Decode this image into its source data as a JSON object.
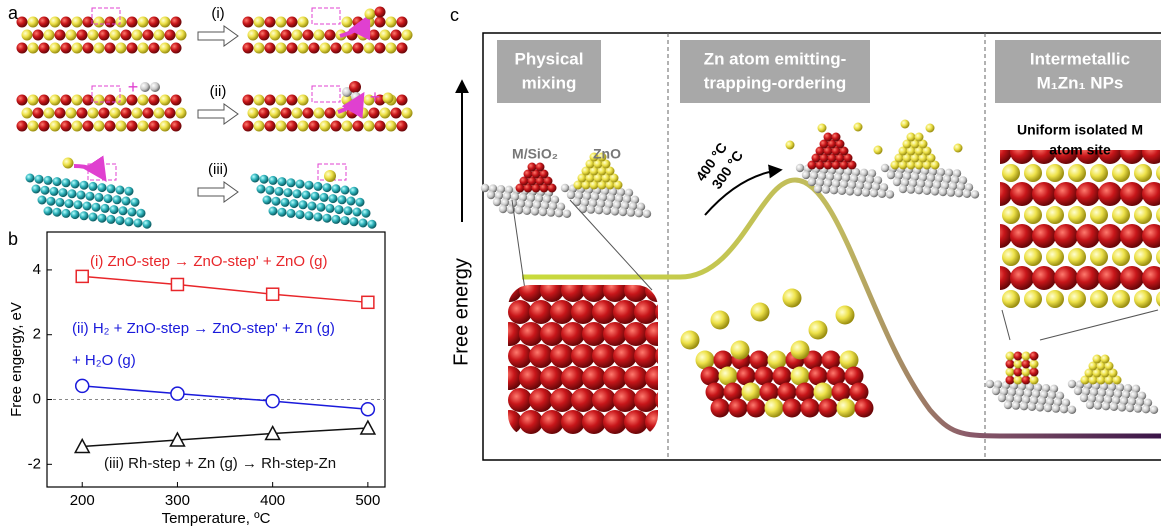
{
  "panel_labels": [
    "a",
    "b",
    "c"
  ],
  "panel_a": {
    "steps": [
      "(i)",
      "(ii)",
      "(iii)"
    ]
  },
  "chart_data": {
    "type": "line",
    "x": [
      200,
      300,
      400,
      500
    ],
    "xlim": [
      163,
      518
    ],
    "xticks": [
      200,
      300,
      400,
      500
    ],
    "ylim": [
      -2.7,
      5.17
    ],
    "yticks": [
      -2,
      0,
      2,
      4
    ],
    "xlabel": "Temperature, ºC",
    "ylabel": "Free engergy, eV",
    "zero_line": true,
    "series": [
      {
        "name": "(i) ZnO-step  → ZnO-step' + ZnO (g)",
        "color": "#e8262a",
        "marker": "square",
        "values": [
          3.8,
          3.55,
          3.25,
          3.0
        ]
      },
      {
        "name": [
          "(ii) H₂ + ZnO-step → ZnO-step' + Zn (g)",
          "+ H₂O (g)"
        ],
        "color": "#1a1adb",
        "marker": "circle",
        "values": [
          0.42,
          0.18,
          -0.05,
          -0.3
        ]
      },
      {
        "name": "(iii) Rh-step + Zn (g)  → Rh-step-Zn",
        "color": "#111111",
        "marker": "triangle",
        "values": [
          -1.45,
          -1.25,
          -1.05,
          -0.88
        ]
      }
    ]
  },
  "panel_c": {
    "ylabel": "Free energy",
    "stages": [
      [
        "Physical",
        "mixing"
      ],
      [
        "Zn atom emitting-",
        "trapping-ordering"
      ],
      [
        "Intermetallic",
        "M₁Zn₁ NPs"
      ]
    ],
    "support_label": "M/SiO₂",
    "zno_label": "ZnO",
    "temps": [
      "400 °C",
      "300 °C"
    ],
    "site_label": [
      "Uniform isolated M",
      "atom site"
    ]
  }
}
